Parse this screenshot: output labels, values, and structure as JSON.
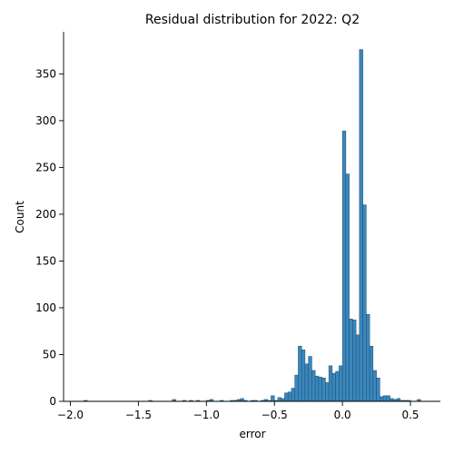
{
  "chart_data": {
    "type": "bar",
    "title": "Residual distribution for 2022: Q2",
    "xlabel": "error",
    "ylabel": "Count",
    "xlim": [
      -2.05,
      0.72
    ],
    "ylim": [
      0,
      395
    ],
    "xticks": [
      -2.0,
      -1.5,
      -1.0,
      -0.5,
      0.0,
      0.5
    ],
    "xtick_labels": [
      "−2.0",
      "−1.5",
      "−1.0",
      "−0.5",
      "0.0",
      "0.5"
    ],
    "yticks": [
      0,
      50,
      100,
      150,
      200,
      250,
      300,
      350
    ],
    "ytick_labels": [
      "0",
      "50",
      "100",
      "150",
      "200",
      "250",
      "300",
      "350"
    ],
    "grid": false,
    "bar_color": "#3a87bd",
    "edge_color": "#1d4a6b",
    "bin_width": 0.025,
    "bin_left": [
      -1.9,
      -1.425,
      -1.25,
      -1.175,
      -1.125,
      -1.075,
      -1.0,
      -0.975,
      -0.9,
      -0.825,
      -0.8,
      -0.775,
      -0.75,
      -0.725,
      -0.675,
      -0.65,
      -0.6,
      -0.575,
      -0.55,
      -0.525,
      -0.5,
      -0.475,
      -0.45,
      -0.425,
      -0.4,
      -0.375,
      -0.35,
      -0.325,
      -0.3,
      -0.275,
      -0.25,
      -0.225,
      -0.2,
      -0.175,
      -0.15,
      -0.125,
      -0.1,
      -0.075,
      -0.05,
      -0.025,
      0.0,
      0.025,
      0.05,
      0.075,
      0.1,
      0.125,
      0.15,
      0.175,
      0.2,
      0.225,
      0.25,
      0.275,
      0.3,
      0.325,
      0.35,
      0.375,
      0.4,
      0.425,
      0.45,
      0.475,
      0.55
    ],
    "counts": [
      1,
      1,
      2,
      1,
      1,
      1,
      1,
      2,
      1,
      1,
      1,
      2,
      3,
      1,
      1,
      1,
      1,
      2,
      1,
      6,
      1,
      4,
      3,
      9,
      10,
      14,
      28,
      59,
      55,
      40,
      48,
      33,
      27,
      26,
      25,
      20,
      38,
      30,
      32,
      38,
      289,
      243,
      88,
      87,
      71,
      376,
      210,
      93,
      59,
      33,
      25,
      5,
      6,
      6,
      3,
      2,
      3,
      1,
      1,
      1,
      2
    ]
  }
}
